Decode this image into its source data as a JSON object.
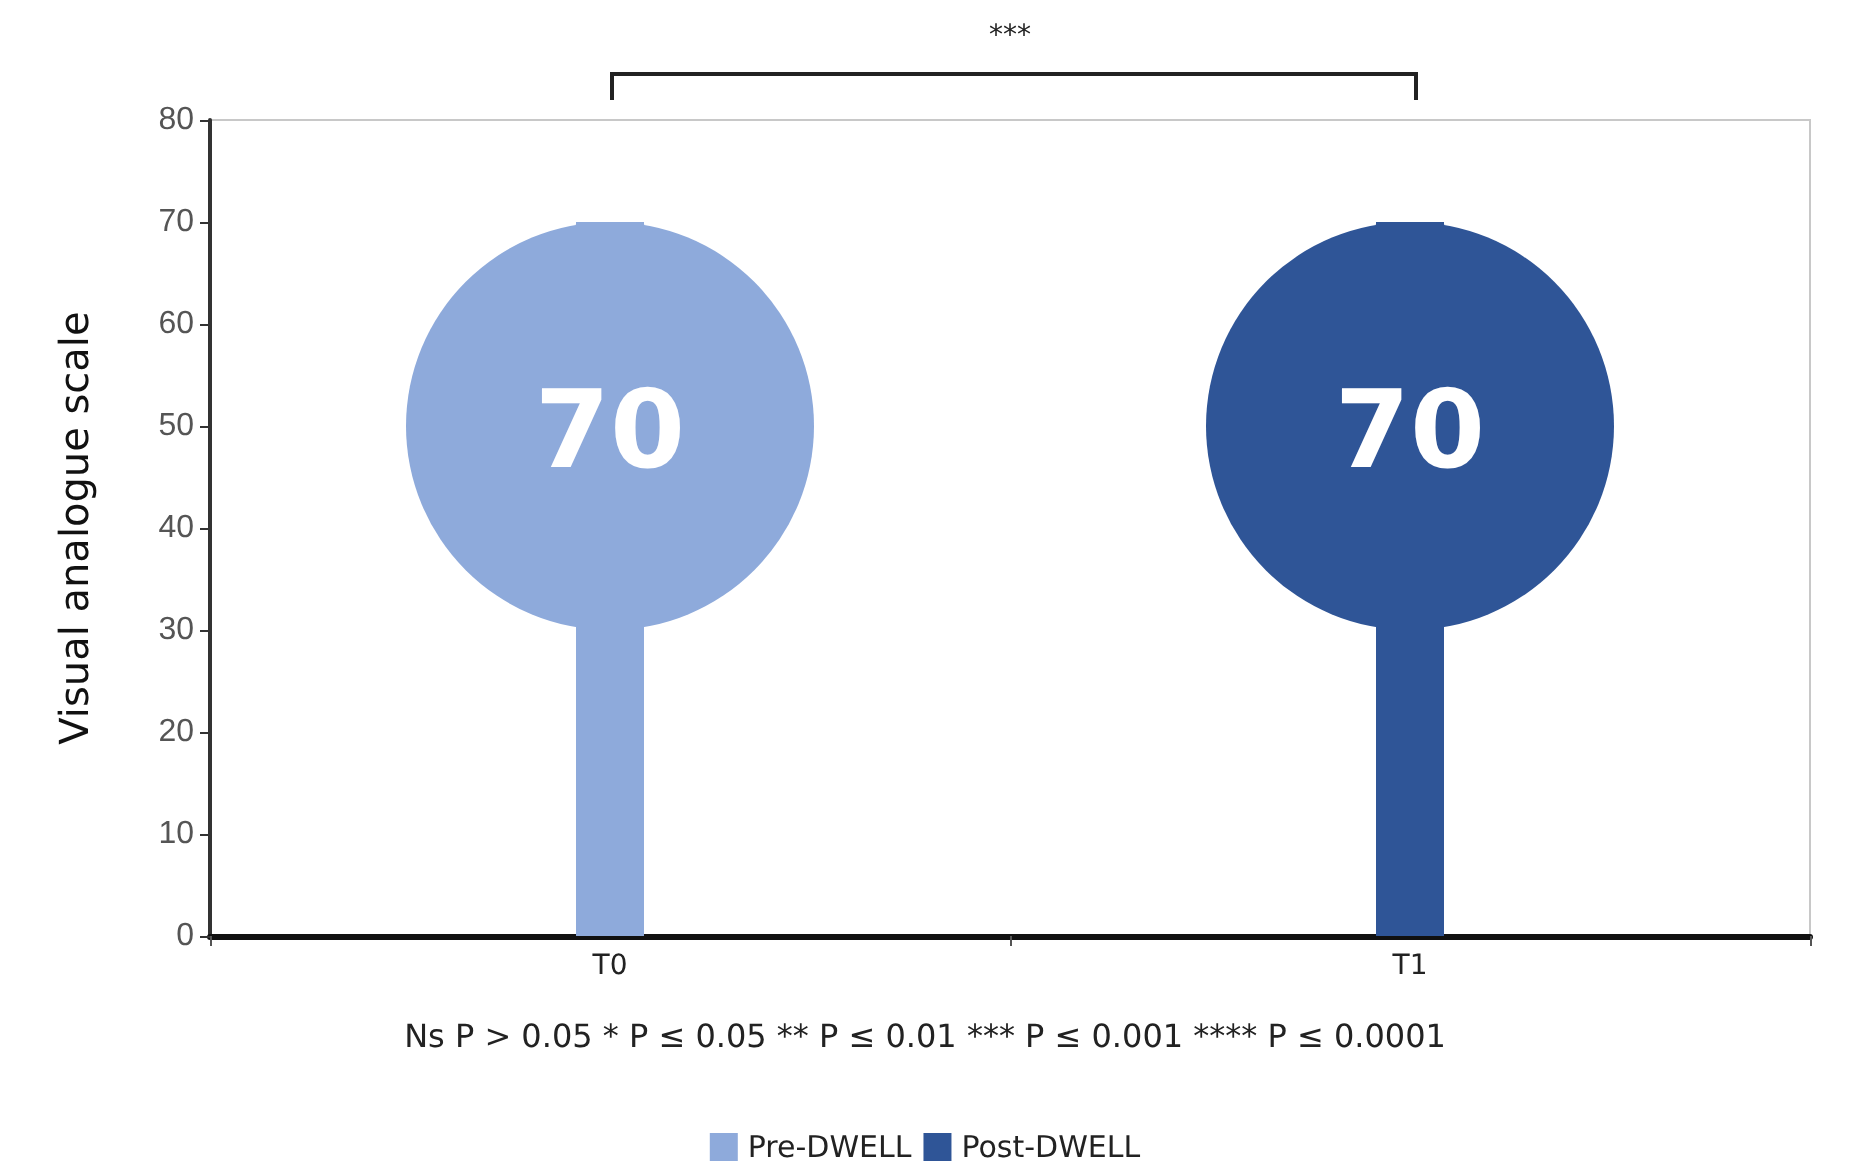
{
  "chart_data": {
    "type": "bar",
    "ylabel": "Visual analogue scale",
    "categories": [
      "T0",
      "T1"
    ],
    "series": [
      {
        "name": "Pre-DWELL",
        "color": "#8eaadb",
        "values": [
          70,
          null
        ]
      },
      {
        "name": "Post-DWELL",
        "color": "#2f5597",
        "values": [
          null,
          70
        ]
      }
    ],
    "ylim": [
      0,
      80
    ],
    "yticks": [
      0,
      10,
      20,
      30,
      40,
      50,
      60,
      70,
      80
    ],
    "grid": false,
    "legend": "bottom",
    "data_labels": true,
    "annotations": [
      "***",
      "Ns P > 0.05 * P ≤ 0.05 ** P ≤ 0.01 *** P ≤ 0.001 **** P ≤ 0.0001"
    ]
  }
}
